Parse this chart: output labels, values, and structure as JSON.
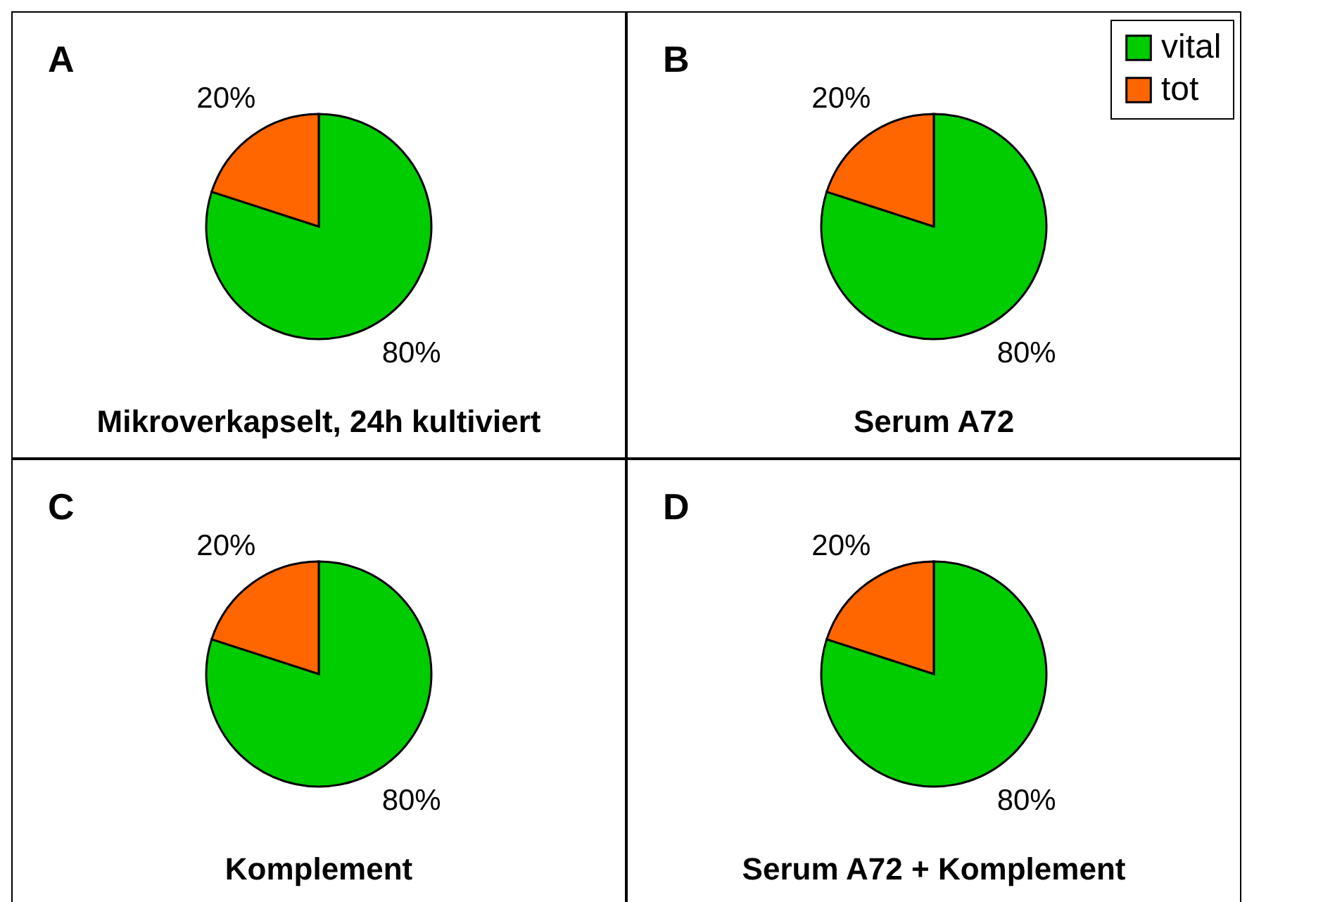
{
  "chart_data": [
    {
      "type": "pie",
      "title": "A",
      "categories": [
        null,
        null
      ],
      "values": [
        80,
        20
      ],
      "colors": [
        "#00cc00",
        "#ff6600"
      ],
      "value_labels": [
        "80%",
        "20%"
      ],
      "annotations": [
        "Mikroverkapselt, 24h kultiviert"
      ]
    },
    {
      "type": "pie",
      "title": "B",
      "categories": [
        "vital",
        "tot"
      ],
      "values": [
        80,
        20
      ],
      "colors": [
        "#00cc00",
        "#ff6600"
      ],
      "value_labels": [
        "80%",
        "20%"
      ],
      "annotations": [
        "Serum A72"
      ],
      "legend": "top right"
    },
    {
      "type": "pie",
      "title": "C",
      "categories": [
        null,
        null
      ],
      "values": [
        80,
        20
      ],
      "colors": [
        "#00cc00",
        "#ff6600"
      ],
      "value_labels": [
        "80%",
        "20%"
      ],
      "annotations": [
        "Komplement"
      ]
    },
    {
      "type": "pie",
      "title": "D",
      "categories": [
        null,
        null
      ],
      "values": [
        80,
        20
      ],
      "colors": [
        "#00cc00",
        "#ff6600"
      ],
      "value_labels": [
        "80%",
        "20%"
      ],
      "annotations": [
        "Serum A72 + Komplement"
      ]
    }
  ]
}
